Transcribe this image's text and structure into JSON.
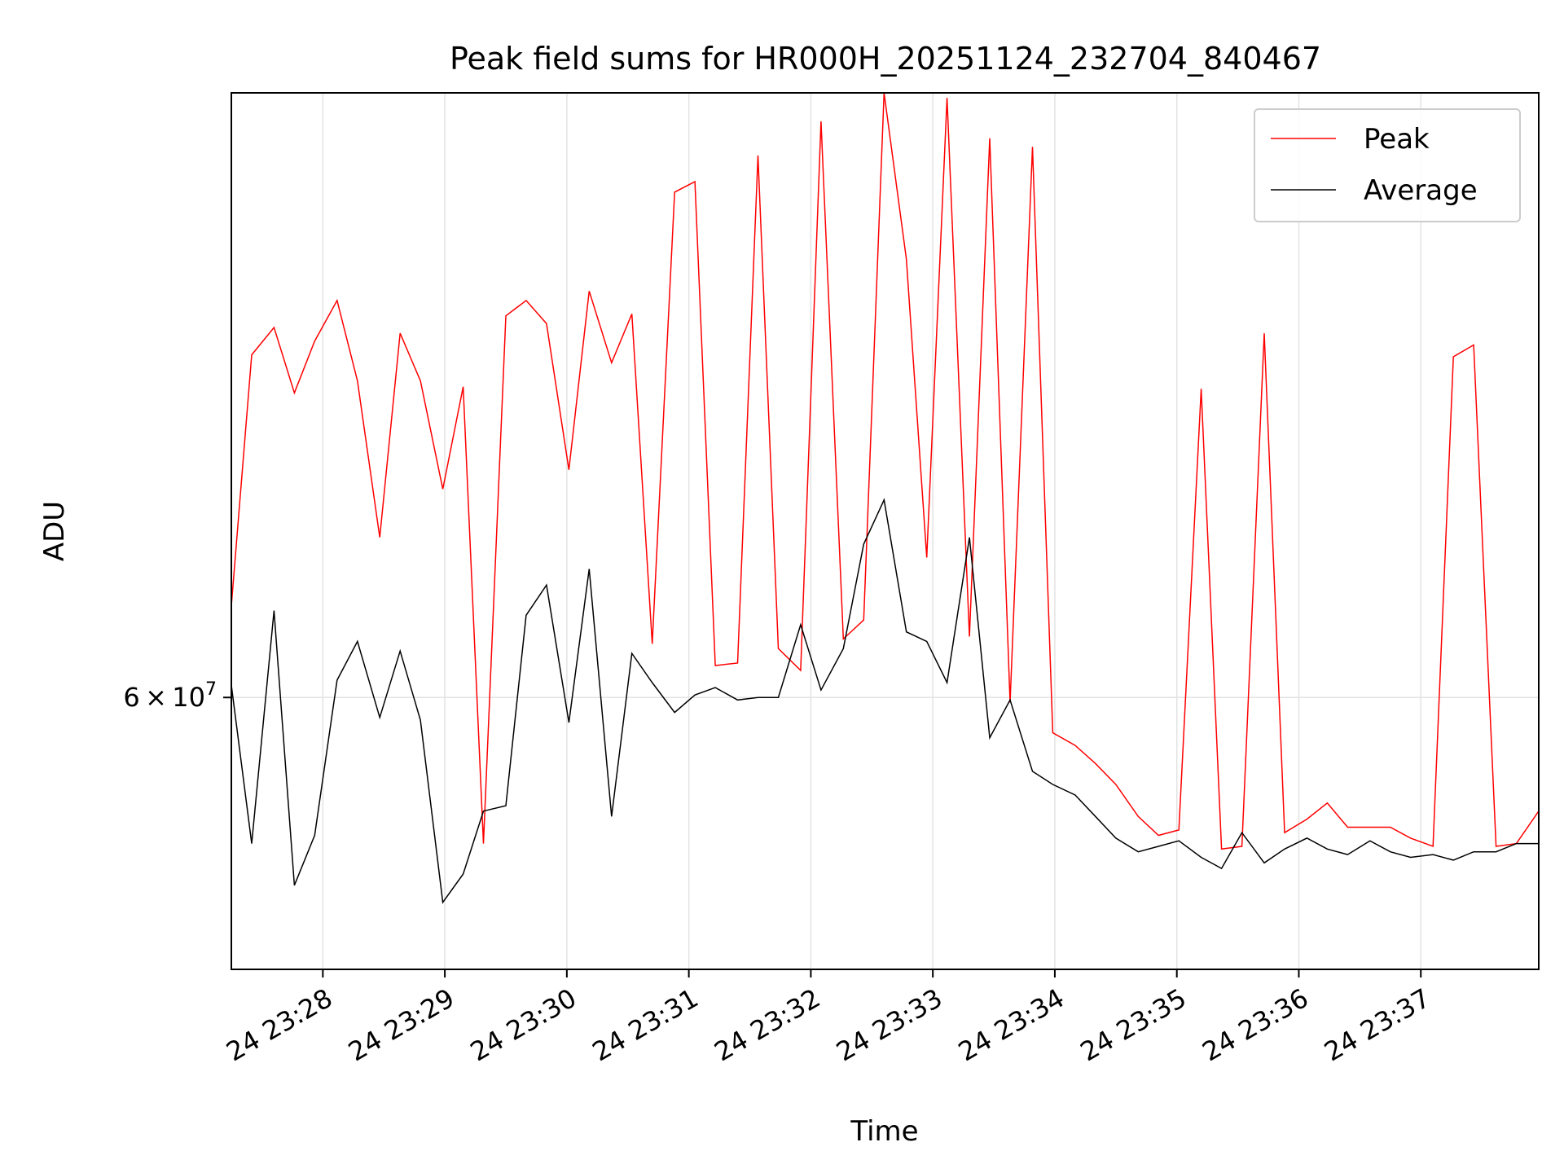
{
  "chart_data": {
    "type": "line",
    "title": "Peak field sums for HR000H_20251124_232704_840467",
    "xlabel": "Time",
    "ylabel": "ADU",
    "y_scale": "log",
    "y_tick_labels": [
      {
        "value": 60000000,
        "mantissa": "6",
        "base": "10",
        "exp": "7"
      }
    ],
    "ylim": [
      50000000,
      90000000
    ],
    "x_tick_labels": [
      "24 23:28",
      "24 23:29",
      "24 23:30",
      "24 23:31",
      "24 23:32",
      "24 23:33",
      "24 23:34",
      "24 23:35",
      "24 23:36",
      "24 23:37"
    ],
    "x_tick_times": [
      "23:28",
      "23:29",
      "23:30",
      "23:31",
      "23:32",
      "23:33",
      "23:34",
      "23:35",
      "23:36",
      "23:37"
    ],
    "xlim": [
      "23:27:15",
      "23:37:58"
    ],
    "grid": true,
    "legend": {
      "position": "top-right",
      "entries": [
        "Peak",
        "Average"
      ]
    },
    "series": [
      {
        "name": "Peak",
        "color": "#ff0000",
        "x": [
          "23:27:15",
          "23:27:25",
          "23:27:36",
          "23:27:46",
          "23:27:56",
          "23:28:07",
          "23:28:17",
          "23:28:28",
          "23:28:38",
          "23:28:48",
          "23:28:59",
          "23:29:09",
          "23:29:19",
          "23:29:30",
          "23:29:40",
          "23:29:50",
          "23:30:01",
          "23:30:11",
          "23:30:22",
          "23:30:32",
          "23:30:42",
          "23:30:53",
          "23:31:03",
          "23:31:13",
          "23:31:24",
          "23:31:34",
          "23:31:44",
          "23:31:55",
          "23:32:05",
          "23:32:16",
          "23:32:26",
          "23:32:36",
          "23:32:47",
          "23:32:57",
          "23:33:07",
          "23:33:18",
          "23:33:28",
          "23:33:38",
          "23:33:49",
          "23:33:59",
          "23:34:10",
          "23:34:20",
          "23:34:30",
          "23:34:41",
          "23:34:51",
          "23:35:01",
          "23:35:12",
          "23:35:22",
          "23:35:32",
          "23:35:43",
          "23:35:53",
          "23:36:04",
          "23:36:14",
          "23:36:24",
          "23:36:35",
          "23:36:45",
          "23:36:55",
          "23:37:06",
          "23:37:16",
          "23:37:26",
          "23:37:37",
          "23:37:47",
          "23:37:58"
        ],
        "values": [
          63800000,
          75500000,
          76900000,
          73600000,
          76200000,
          78300000,
          74200000,
          66800000,
          76600000,
          74200000,
          69000000,
          73900000,
          54400000,
          77500000,
          78300000,
          77100000,
          69900000,
          78800000,
          75100000,
          77600000,
          62200000,
          84200000,
          84800000,
          61300000,
          61400000,
          86300000,
          62000000,
          61100000,
          88300000,
          62400000,
          63200000,
          90000000,
          80500000,
          65900000,
          89700000,
          62500000,
          87300000,
          59800000,
          86800000,
          58600000,
          58100000,
          57400000,
          56600000,
          55400000,
          54700000,
          54900000,
          73800000,
          54200000,
          54300000,
          76600000,
          54800000,
          55300000,
          55900000,
          55000000,
          55000000,
          55000000,
          54600000,
          54300000,
          75400000,
          76000000,
          54300000,
          54400000,
          55600000
        ]
      },
      {
        "name": "Average",
        "color": "#000000",
        "x": [
          "23:27:15",
          "23:27:25",
          "23:27:36",
          "23:27:46",
          "23:27:56",
          "23:28:07",
          "23:28:17",
          "23:28:28",
          "23:28:38",
          "23:28:48",
          "23:28:59",
          "23:29:09",
          "23:29:19",
          "23:29:30",
          "23:29:40",
          "23:29:50",
          "23:30:01",
          "23:30:11",
          "23:30:22",
          "23:30:32",
          "23:30:42",
          "23:30:53",
          "23:31:03",
          "23:31:13",
          "23:31:24",
          "23:31:34",
          "23:31:44",
          "23:31:55",
          "23:32:05",
          "23:32:16",
          "23:32:26",
          "23:32:36",
          "23:32:47",
          "23:32:57",
          "23:33:07",
          "23:33:18",
          "23:33:28",
          "23:33:38",
          "23:33:49",
          "23:33:59",
          "23:34:10",
          "23:34:20",
          "23:34:30",
          "23:34:41",
          "23:34:51",
          "23:35:01",
          "23:35:12",
          "23:35:22",
          "23:35:32",
          "23:35:43",
          "23:35:53",
          "23:36:04",
          "23:36:14",
          "23:36:24",
          "23:36:35",
          "23:36:45",
          "23:36:55",
          "23:37:06",
          "23:37:16",
          "23:37:26",
          "23:37:37",
          "23:37:47",
          "23:37:58"
        ],
        "values": [
          60500000,
          54400000,
          63600000,
          52900000,
          54700000,
          60700000,
          62300000,
          59200000,
          61900000,
          59100000,
          52300000,
          53300000,
          55600000,
          55800000,
          63400000,
          64700000,
          59000000,
          65400000,
          55400000,
          61800000,
          60600000,
          59400000,
          60100000,
          60400000,
          59900000,
          60000000,
          60000000,
          63000000,
          60300000,
          62000000,
          66500000,
          68500000,
          62700000,
          62300000,
          60600000,
          66800000,
          58400000,
          59900000,
          57100000,
          56600000,
          56200000,
          55400000,
          54600000,
          54100000,
          54300000,
          54500000,
          53900000,
          53500000,
          54800000,
          53700000,
          54200000,
          54600000,
          54200000,
          54000000,
          54500000,
          54100000,
          53900000,
          54000000,
          53800000,
          54100000,
          54100000,
          54400000,
          54400000
        ]
      }
    ]
  }
}
